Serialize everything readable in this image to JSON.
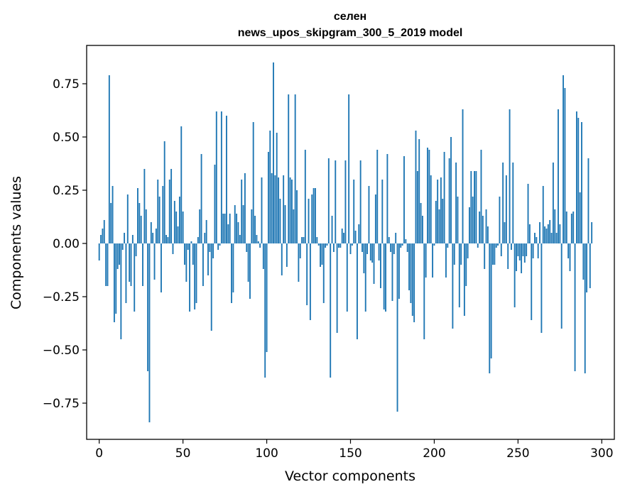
{
  "chart_data": {
    "type": "bar",
    "title": "селен",
    "subtitle": "news_upos_skipgram_300_5_2019 model",
    "xlabel": "Vector components",
    "ylabel": "Components values",
    "xlim": [
      -7.5,
      307.5
    ],
    "ylim": [
      -0.92,
      0.93
    ],
    "xticks": [
      0,
      50,
      100,
      150,
      200,
      250,
      300
    ],
    "xtick_labels": [
      "0",
      "50",
      "100",
      "150",
      "200",
      "250",
      "300"
    ],
    "yticks": [
      0.75,
      0.5,
      0.25,
      0.0,
      -0.25,
      -0.5,
      -0.75
    ],
    "ytick_labels": [
      "0.75",
      "0.50",
      "0.25",
      "0.00",
      "−0.25",
      "−0.50",
      "−0.75"
    ],
    "bar_color": "#1f77b4",
    "values": [
      -0.08,
      0.04,
      0.07,
      0.11,
      -0.2,
      -0.2,
      0.79,
      0.19,
      0.27,
      -0.37,
      -0.33,
      -0.12,
      -0.1,
      -0.45,
      -0.03,
      0.05,
      -0.28,
      0.23,
      -0.18,
      -0.2,
      0.04,
      -0.32,
      -0.06,
      0.26,
      0.19,
      0.13,
      -0.2,
      0.35,
      0.16,
      -0.6,
      -0.84,
      0.1,
      0.05,
      -0.17,
      0.07,
      0.3,
      0.22,
      -0.23,
      0.27,
      0.48,
      0.04,
      0.03,
      0.3,
      0.35,
      -0.05,
      0.2,
      0.15,
      0.08,
      0.22,
      0.55,
      0.15,
      -0.1,
      -0.18,
      -0.03,
      -0.32,
      0.01,
      -0.1,
      -0.31,
      -0.28,
      0.03,
      0.16,
      0.42,
      -0.2,
      0.05,
      0.11,
      -0.15,
      -0.04,
      -0.41,
      -0.07,
      0.37,
      0.62,
      -0.03,
      -0.01,
      0.62,
      0.14,
      0.14,
      0.6,
      0.09,
      0.14,
      -0.28,
      -0.23,
      0.18,
      0.14,
      0.1,
      0.04,
      0.3,
      0.18,
      0.33,
      -0.04,
      -0.18,
      -0.26,
      0.16,
      0.57,
      0.13,
      0.04,
      0.01,
      -0.02,
      0.31,
      -0.12,
      -0.63,
      -0.51,
      0.43,
      0.53,
      0.33,
      0.85,
      0.32,
      0.52,
      0.31,
      0.21,
      -0.15,
      0.32,
      0.18,
      -0.11,
      0.7,
      0.31,
      0.3,
      0.16,
      0.7,
      0.25,
      -0.18,
      -0.07,
      0.03,
      0.03,
      0.44,
      -0.29,
      0.21,
      -0.36,
      0.23,
      0.26,
      0.26,
      0.03,
      -0.01,
      -0.11,
      -0.1,
      -0.28,
      -0.02,
      -0.01,
      0.4,
      -0.63,
      0.13,
      -0.04,
      0.39,
      -0.42,
      -0.02,
      -0.02,
      0.07,
      0.05,
      0.39,
      -0.32,
      0.7,
      -0.05,
      -0.01,
      0.3,
      0.06,
      -0.45,
      0.09,
      0.39,
      -0.04,
      -0.14,
      -0.32,
      -0.05,
      0.27,
      -0.08,
      -0.09,
      -0.19,
      0.23,
      0.44,
      -0.08,
      -0.21,
      0.3,
      -0.31,
      -0.32,
      0.42,
      0.03,
      -0.04,
      -0.27,
      -0.05,
      0.05,
      -0.79,
      -0.26,
      -0.02,
      -0.01,
      0.41,
      0.02,
      -0.04,
      -0.22,
      -0.28,
      -0.34,
      -0.37,
      0.53,
      0.34,
      0.49,
      0.19,
      0.13,
      -0.45,
      -0.16,
      0.45,
      0.44,
      0.32,
      -0.16,
      -0.01,
      0.2,
      0.3,
      0.16,
      0.31,
      0.21,
      0.43,
      -0.16,
      -0.02,
      0.4,
      0.5,
      -0.4,
      -0.1,
      0.38,
      0.22,
      -0.3,
      -0.1,
      0.63,
      -0.34,
      -0.2,
      -0.07,
      0.17,
      0.34,
      0.22,
      0.34,
      0.34,
      -0.02,
      0.15,
      0.44,
      0.13,
      -0.12,
      0.16,
      0.08,
      -0.61,
      -0.54,
      -0.1,
      -0.1,
      -0.02,
      -0.01,
      0.22,
      -0.06,
      0.38,
      0.1,
      0.32,
      -0.12,
      0.63,
      -0.03,
      0.38,
      -0.3,
      -0.13,
      -0.06,
      -0.08,
      -0.14,
      -0.06,
      -0.09,
      -0.06,
      0.28,
      0.09,
      -0.36,
      -0.07,
      0.05,
      0.03,
      -0.07,
      0.1,
      -0.42,
      0.27,
      0.08,
      0.07,
      0.09,
      0.11,
      0.05,
      0.38,
      0.16,
      0.05,
      0.63,
      0.09,
      -0.4,
      0.79,
      0.73,
      0.15,
      -0.07,
      -0.13,
      0.14,
      0.15,
      -0.6,
      0.62,
      0.59,
      0.24,
      0.57,
      -0.17,
      -0.61,
      -0.23,
      0.4,
      -0.21,
      0.1
    ]
  }
}
